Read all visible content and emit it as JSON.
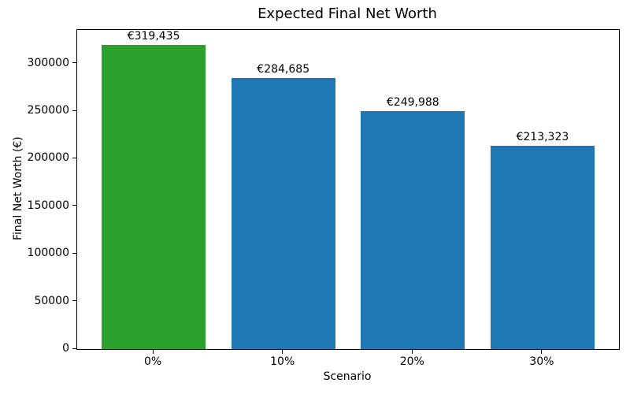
{
  "figure": {
    "background": "#ffffff",
    "text_color": "#000000",
    "spine_color": "#000000"
  },
  "chart_data": {
    "type": "bar",
    "title": "Expected Final Net Worth",
    "xlabel": "Scenario",
    "ylabel": "Final Net Worth (€)",
    "categories": [
      "0%",
      "10%",
      "20%",
      "30%"
    ],
    "values": [
      319435,
      284685,
      249988,
      213323
    ],
    "bar_labels": [
      "€319,435",
      "€284,685",
      "€249,988",
      "€213,323"
    ],
    "bar_colors": [
      "#2ca02c",
      "#1f77b4",
      "#1f77b4",
      "#1f77b4"
    ],
    "ylim": [
      0,
      335400
    ],
    "yticks": [
      0,
      50000,
      100000,
      150000,
      200000,
      250000,
      300000
    ],
    "grid": false,
    "legend_position": "none"
  }
}
